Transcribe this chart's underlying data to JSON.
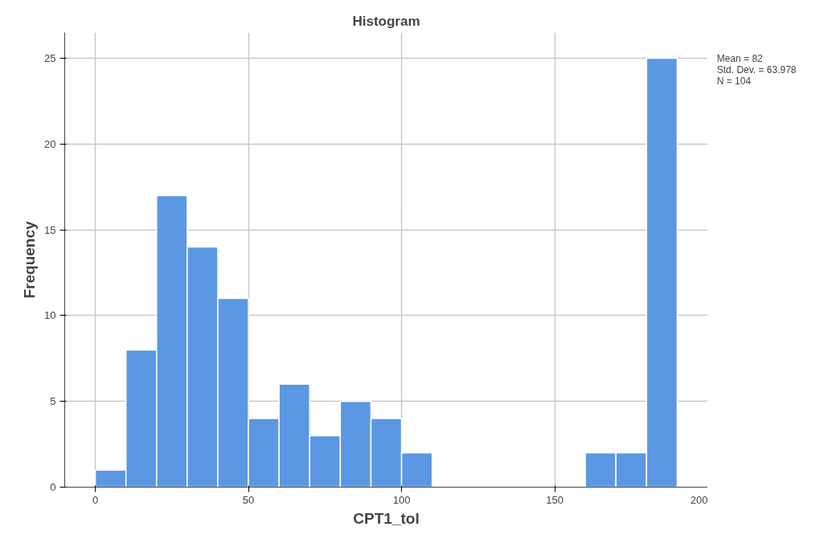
{
  "chart_data": {
    "type": "histogram",
    "title": "Histogram",
    "xlabel": "CPT1_tol",
    "ylabel": "Frequency",
    "bins": [
      0,
      10,
      20,
      30,
      40,
      50,
      60,
      70,
      80,
      90,
      100,
      110,
      120,
      130,
      140,
      150,
      160,
      170,
      180,
      190
    ],
    "values": [
      1,
      8,
      17,
      14,
      11,
      4,
      6,
      3,
      5,
      4,
      2,
      0,
      0,
      0,
      0,
      0,
      2,
      2,
      25
    ],
    "color": "#5b97e3",
    "xlim": [
      -10,
      200
    ],
    "xticks": [
      0,
      50,
      100,
      150,
      200
    ],
    "ylim": [
      0,
      26.5
    ],
    "yticks": [
      0,
      5,
      10,
      15,
      20,
      25
    ],
    "grid": true,
    "annotations": [
      "Mean = 82",
      "Std. Dev. = 63.978",
      "N = 104"
    ]
  }
}
